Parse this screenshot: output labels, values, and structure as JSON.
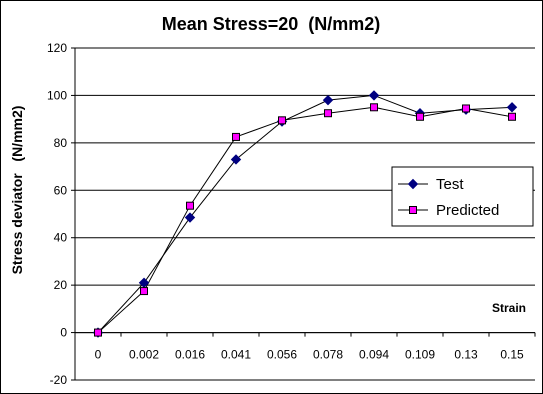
{
  "chart_data": {
    "type": "line",
    "title": "Mean Stress=20  (N/mm2)",
    "xlabel": "Strain",
    "ylabel": "Stress deviator   (N/mm2)",
    "categories": [
      "0",
      "0.002",
      "0.016",
      "0.041",
      "0.056",
      "0.078",
      "0.094",
      "0.109",
      "0.13",
      "0.15"
    ],
    "ylim": [
      -20,
      120
    ],
    "yticks": [
      "-20",
      "0",
      "20",
      "40",
      "60",
      "80",
      "100",
      "120"
    ],
    "grid": "horizontal major gridlines",
    "legend_position": "right",
    "series": [
      {
        "name": "Test",
        "marker": "diamond",
        "color": "#000080",
        "line_color": "#000000",
        "values": [
          0,
          21,
          48.5,
          73,
          89,
          98,
          100,
          92.5,
          94,
          95
        ]
      },
      {
        "name": "Predicted",
        "marker": "square",
        "color": "#ff00ff",
        "line_color": "#000000",
        "values": [
          0,
          17.5,
          53.5,
          82.5,
          89.5,
          92.5,
          95,
          91,
          94.5,
          91
        ]
      }
    ]
  }
}
